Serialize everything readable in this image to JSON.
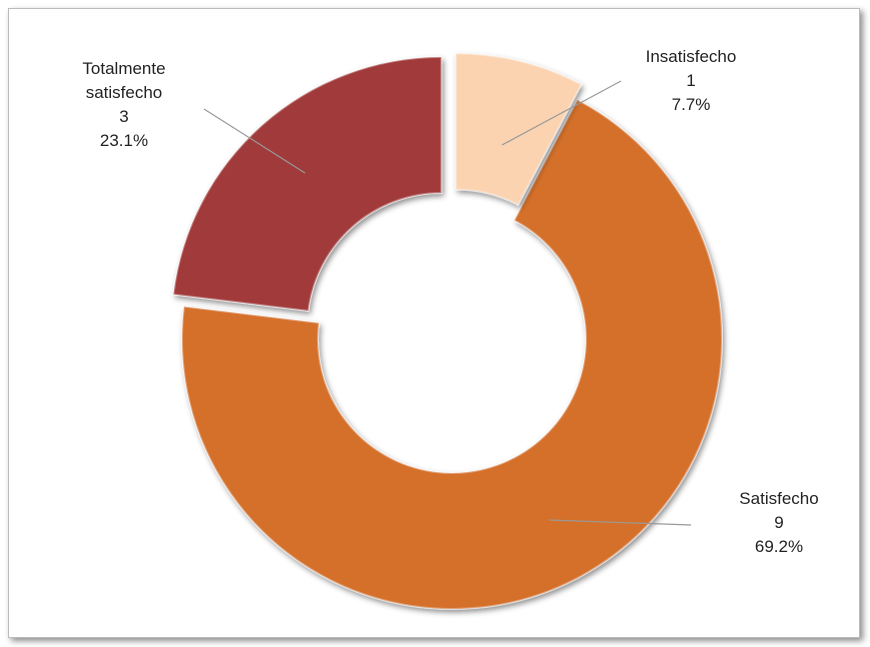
{
  "chart_data": {
    "type": "donut",
    "categories": [
      "Insatisfecho",
      "Satisfecho",
      "Totalmente satisfecho"
    ],
    "values": [
      1,
      9,
      3
    ],
    "percent_labels": [
      "7.7%",
      "69.2%",
      "23.1%"
    ],
    "colors": [
      "#fbd3b0",
      "#d46f2c",
      "#a13a3a"
    ]
  }
}
